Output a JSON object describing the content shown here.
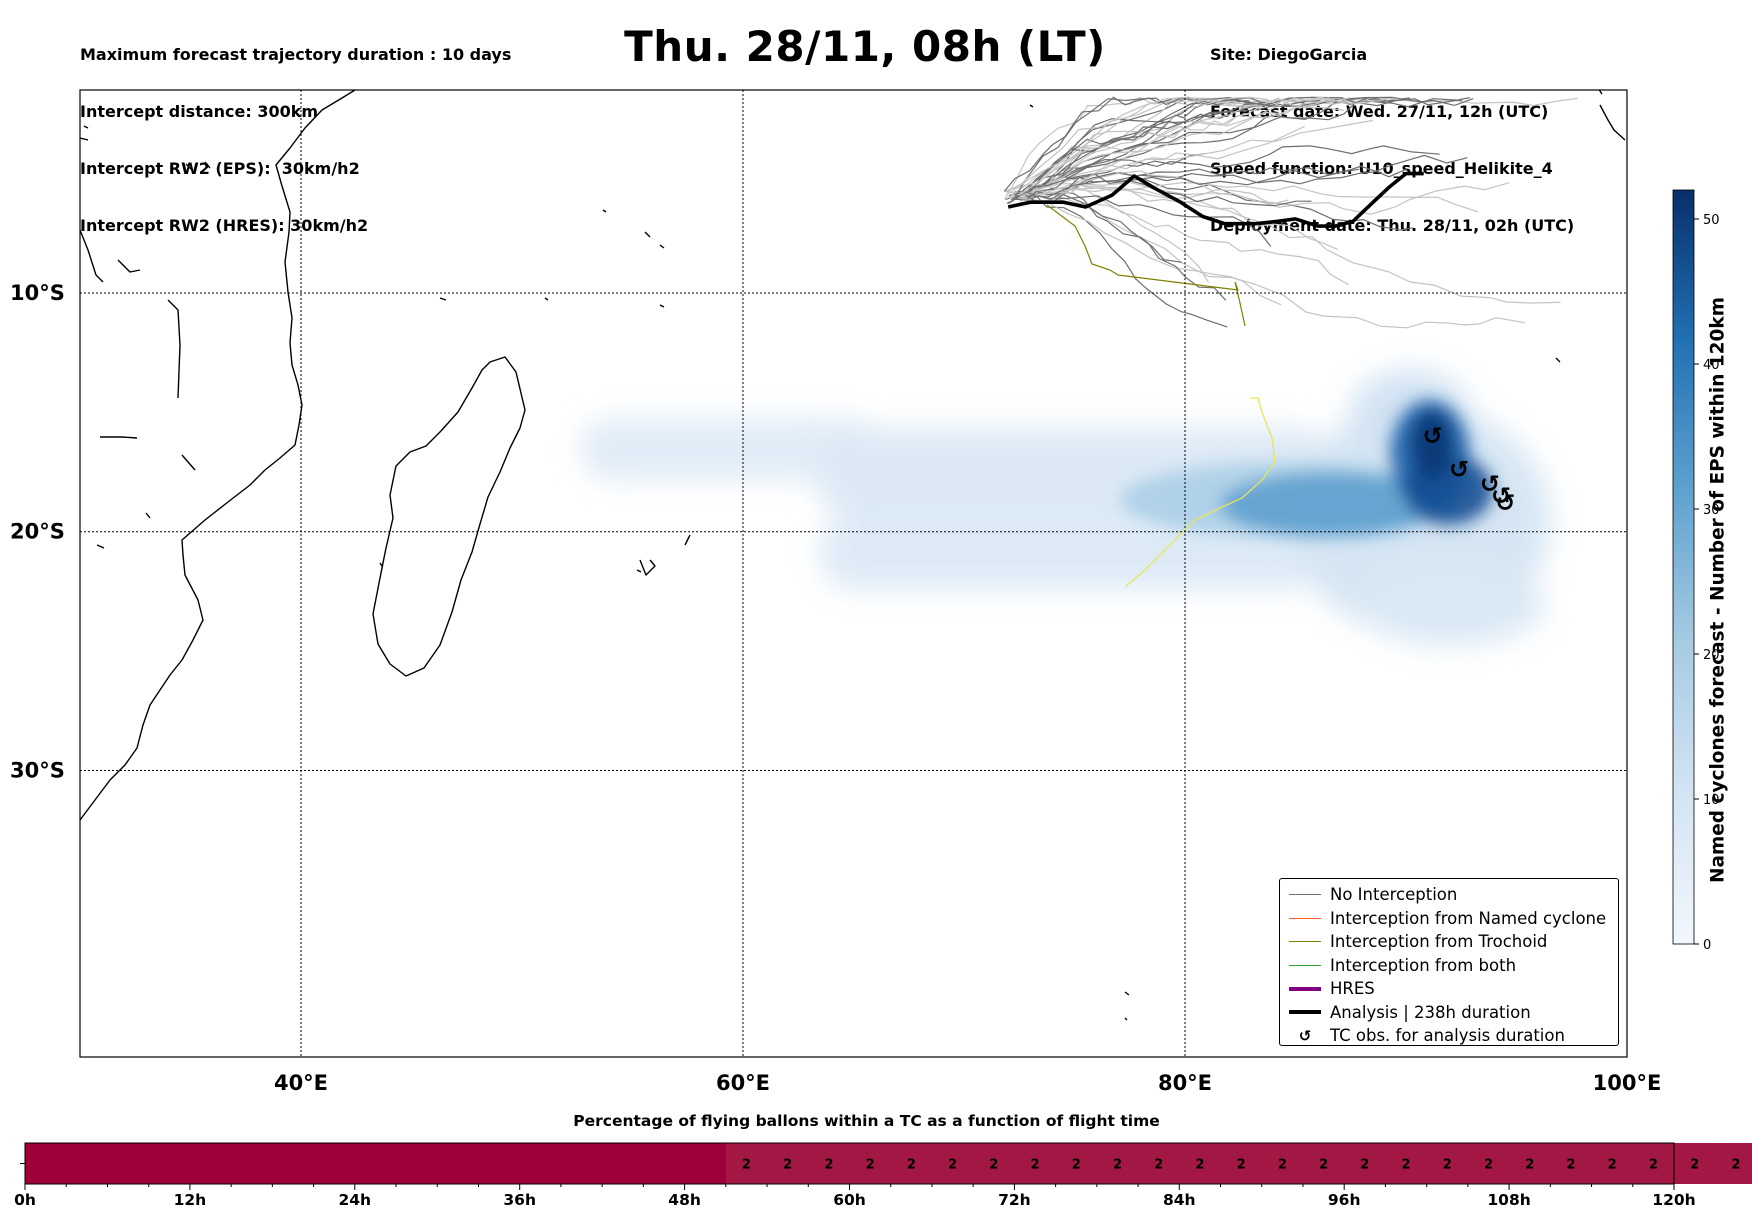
{
  "title": "Thu. 28/11, 08h (LT)",
  "header_left": [
    "Maximum forecast trajectory duration : 10 days",
    "Intercept distance: 300km",
    "Intercept RW2 (EPS):  30km/h2",
    "Intercept RW2 (HRES): 30km/h2"
  ],
  "header_right": [
    "Site: DiegoGarcia",
    "Forecast date: Wed. 27/11, 12h (UTC)",
    "Speed function: U10_speed_Helikite_4",
    "Deployment date: Thu. 28/11, 02h (UTC)"
  ],
  "map": {
    "lon_range": [
      30,
      100
    ],
    "lat_range": [
      -42,
      -1.5
    ],
    "lon_ticks": [
      {
        "value": 40,
        "label": "40°E"
      },
      {
        "value": 60,
        "label": "60°E"
      },
      {
        "value": 80,
        "label": "80°E"
      },
      {
        "value": 100,
        "label": "100°E"
      }
    ],
    "lat_ticks": [
      {
        "value": -10,
        "label": "10°S"
      },
      {
        "value": -20,
        "label": "20°S"
      },
      {
        "value": -30,
        "label": "30°S"
      }
    ],
    "grid": true
  },
  "legend": {
    "placement": "lower-right",
    "items": [
      {
        "label": "No Interception",
        "color": "#6e6e6e",
        "kind": "line",
        "width": 1.2
      },
      {
        "label": "Interception from Named cyclone",
        "color": "#ff5a1f",
        "kind": "line",
        "width": 1.2
      },
      {
        "label": "Interception from Trochoid",
        "color": "#808000",
        "kind": "line",
        "width": 1.2
      },
      {
        "label": "Interception from both",
        "color": "#2ca02c",
        "kind": "line",
        "width": 1.2
      },
      {
        "label": "HRES",
        "color": "#800080",
        "kind": "line",
        "width": 4
      },
      {
        "label": "Analysis | 238h duration",
        "color": "#000000",
        "kind": "line",
        "width": 4
      },
      {
        "label": "TC obs. for analysis duration",
        "color": "#000000",
        "kind": "symbol",
        "symbol": "↺"
      }
    ]
  },
  "colorbar": {
    "title": "Named cyclones forecast - Number of EPS within 120km",
    "ticks": [
      0,
      10,
      20,
      30,
      40,
      50
    ],
    "min": 0,
    "max": 52,
    "color_low": "#f2f7fd",
    "color_high": "#08306b"
  },
  "analysis_track": {
    "lon": [
      72.0,
      73.0,
      74.5,
      75.5,
      76.7,
      77.7,
      78.6,
      79.8,
      80.8,
      81.8,
      83.2,
      84.2,
      85.0,
      86.0,
      86.8,
      87.6,
      88.4,
      89.2,
      90.0,
      90.8
    ],
    "lat": [
      -6.4,
      -6.2,
      -6.2,
      -6.4,
      -5.9,
      -5.1,
      -5.6,
      -6.2,
      -6.8,
      -7.1,
      -7.1,
      -7.0,
      -6.9,
      -7.2,
      -7.2,
      -7.0,
      -6.3,
      -5.6,
      -5.0,
      -5.0
    ]
  },
  "tc_obs": [
    {
      "lon": 91.2,
      "lat": -16.0
    },
    {
      "lon": 92.4,
      "lat": -17.4
    },
    {
      "lon": 93.8,
      "lat": -18.0
    },
    {
      "lon": 94.3,
      "lat": -18.5
    },
    {
      "lon": 94.5,
      "lat": -18.8
    }
  ],
  "timebar": {
    "title": "Percentage of flying ballons within a TC as a function of flight time",
    "ticks": [
      "0h",
      "12h",
      "24h",
      "36h",
      "48h",
      "60h",
      "72h",
      "84h",
      "96h",
      "108h",
      "120h"
    ],
    "max_hours": 120,
    "step_hours": 3,
    "cell_labels": [
      "",
      "",
      "",
      "",
      "",
      "",
      "",
      "",
      "",
      "",
      "",
      "",
      "",
      "",
      "",
      "",
      "",
      "2",
      "2",
      "2",
      "2",
      "2",
      "2",
      "2",
      "2",
      "2",
      "2",
      "2",
      "2",
      "2",
      "2",
      "2",
      "2",
      "2",
      "2",
      "2",
      "2",
      "2",
      "2",
      "2",
      "2",
      "2"
    ],
    "color_empty": "#9e003a",
    "color_filled": "#a31745"
  }
}
